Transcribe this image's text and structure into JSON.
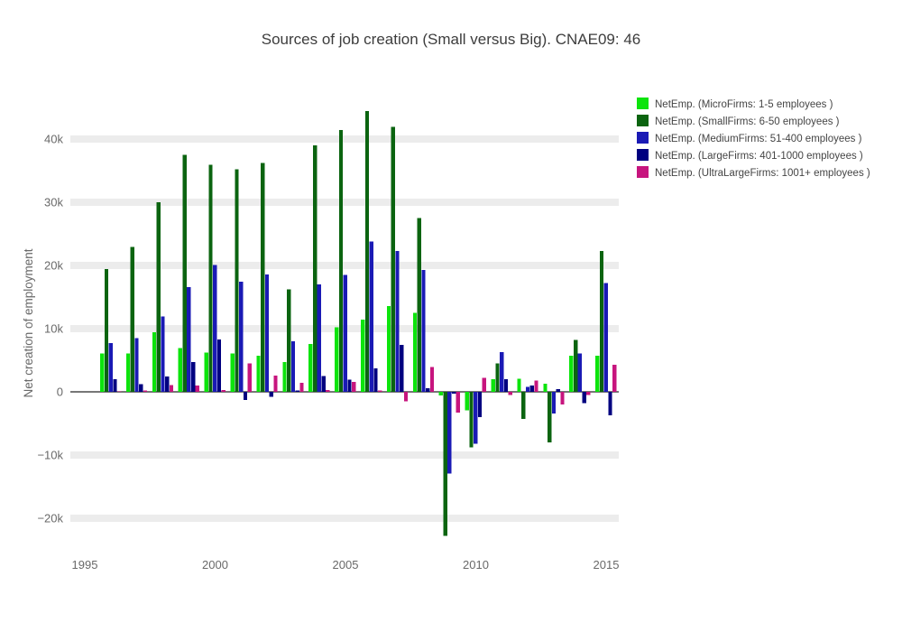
{
  "chart_data": {
    "type": "bar",
    "title": "Sources of job creation (Small versus Big). CNAE09: 46",
    "xlabel": "",
    "ylabel": "Net creation of employment",
    "grid": true,
    "legend_position": "right",
    "ylim": [
      -24000,
      47000
    ],
    "xlim": [
      1994.4,
      2015.8
    ],
    "categories": [
      1996,
      1997,
      1998,
      1999,
      2000,
      2001,
      2002,
      2003,
      2004,
      2005,
      2006,
      2007,
      2008,
      2009,
      2010,
      2011,
      2012,
      2013,
      2014,
      2015
    ],
    "xticks": [
      {
        "year": 1995,
        "label": "1995"
      },
      {
        "year": 2000,
        "label": "2000"
      },
      {
        "year": 2005,
        "label": "2005"
      },
      {
        "year": 2010,
        "label": "2010"
      },
      {
        "year": 2015,
        "label": "2015"
      }
    ],
    "yticks": [
      {
        "v": 40000,
        "label": "40k"
      },
      {
        "v": 30000,
        "label": "30k"
      },
      {
        "v": 20000,
        "label": "20k"
      },
      {
        "v": 10000,
        "label": "10k"
      },
      {
        "v": 0,
        "label": "0"
      },
      {
        "v": -10000,
        "label": "−10k"
      },
      {
        "v": -20000,
        "label": "−20k"
      }
    ],
    "series": [
      {
        "name": "NetEmp. (MicroFirms: 1-5 employees )",
        "color": "#0ce40c",
        "values": [
          6100,
          6100,
          9400,
          6900,
          6200,
          6100,
          5700,
          4700,
          7600,
          10200,
          11400,
          13600,
          12500,
          -600,
          -2900,
          2000,
          2100,
          1300,
          5700,
          5700
        ]
      },
      {
        "name": "NetEmp. (SmallFirms: 6-50 employees )",
        "color": "#0b6410",
        "values": [
          19400,
          22900,
          30000,
          37500,
          35900,
          35200,
          36200,
          16200,
          39000,
          41400,
          44400,
          41900,
          27500,
          -22800,
          -8800,
          4500,
          -4300,
          -8000,
          8200,
          22300
        ]
      },
      {
        "name": "NetEmp. (MediumFirms: 51-400 employees )",
        "color": "#1a1ab5",
        "values": [
          7700,
          8500,
          11900,
          16600,
          20100,
          17400,
          18600,
          8000,
          17000,
          18500,
          23800,
          22300,
          19300,
          -12900,
          -8200,
          6300,
          800,
          -3400,
          6100,
          17200
        ]
      },
      {
        "name": "NetEmp. (LargeFirms: 401-1000 employees )",
        "color": "#000080",
        "values": [
          2000,
          1200,
          2400,
          4700,
          8300,
          -1300,
          -800,
          200,
          2500,
          1900,
          3700,
          7400,
          600,
          -300,
          -4000,
          2000,
          1000,
          400,
          -1800,
          -3700
        ]
      },
      {
        "name": "NetEmp. (UltraLargeFirms: 1001+ employees )",
        "color": "#c7157e",
        "values": [
          100,
          200,
          1100,
          1000,
          300,
          4500,
          2600,
          1400,
          300,
          1600,
          200,
          -1500,
          3900,
          -3300,
          2200,
          -500,
          1800,
          -2000,
          -500,
          4300
        ]
      }
    ]
  },
  "style": {
    "grid_band_color": "#ececec",
    "zero_line_color": "#4a4a4a",
    "tick_text_color": "#696969",
    "title_color": "#3d3d3d",
    "legend_text_color": "#444444"
  }
}
